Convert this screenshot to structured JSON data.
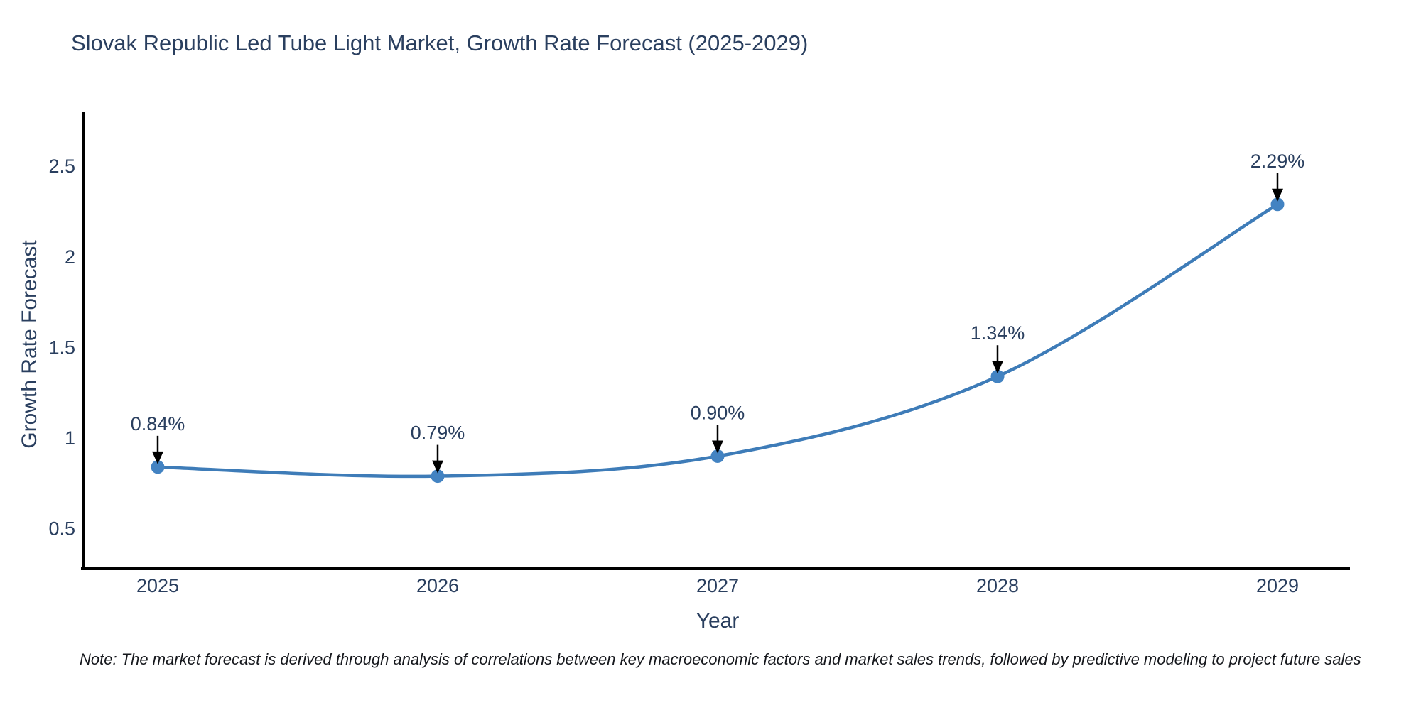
{
  "chart_data": {
    "type": "line",
    "title": "Slovak Republic Led Tube Light Market, Growth Rate Forecast (2025-2029)",
    "xlabel": "Year",
    "ylabel": "Growth Rate Forecast",
    "categories": [
      "2025",
      "2026",
      "2027",
      "2028",
      "2029"
    ],
    "values": [
      0.84,
      0.79,
      0.9,
      1.34,
      2.29
    ],
    "point_labels": [
      "0.84%",
      "0.79%",
      "0.90%",
      "1.34%",
      "2.29%"
    ],
    "y_ticks": [
      0.5,
      1,
      1.5,
      2,
      2.5
    ],
    "y_tick_labels": [
      "0.5",
      "1",
      "1.5",
      "2",
      "2.5"
    ],
    "ylim": [
      0.28,
      2.9
    ],
    "grid": false,
    "legend_position": "none",
    "line_shape": "spline",
    "line_color": "#3e7cb8",
    "marker_color": "#4383c2",
    "axis_color": "#000000",
    "text_color": "#2a3f5f",
    "arrow_color": "#000000"
  },
  "note": {
    "text": "Note: The market forecast is derived through analysis of correlations between key macroeconomic factors and market sales trends, followed by predictive modeling to project future sales"
  }
}
